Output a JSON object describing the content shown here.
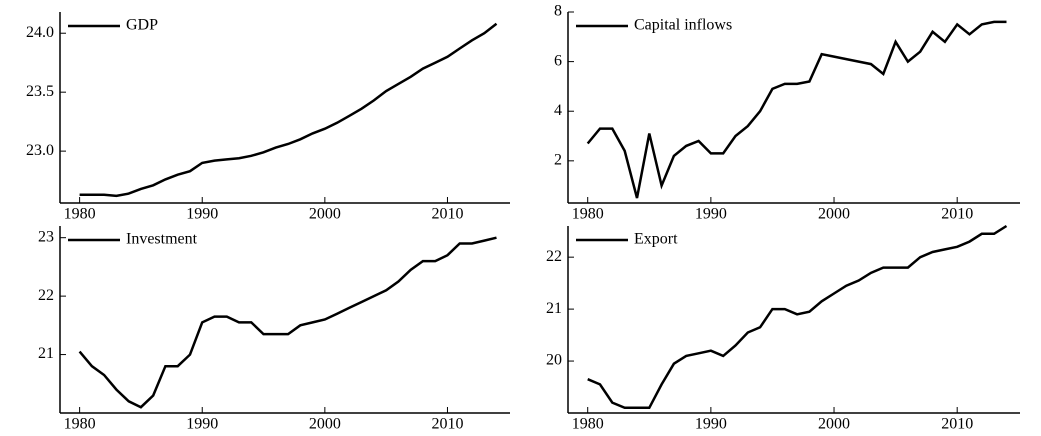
{
  "chart_data": [
    {
      "type": "line",
      "x": [
        1980,
        1981,
        1982,
        1983,
        1984,
        1985,
        1986,
        1987,
        1988,
        1989,
        1990,
        1991,
        1992,
        1993,
        1994,
        1995,
        1996,
        1997,
        1998,
        1999,
        2000,
        2001,
        2002,
        2003,
        2004,
        2005,
        2006,
        2007,
        2008,
        2009,
        2010,
        2011,
        2012,
        2013,
        2014
      ],
      "series": [
        {
          "name": "GDP",
          "color": "#000000",
          "values": [
            22.63,
            22.63,
            22.63,
            22.62,
            22.64,
            22.68,
            22.71,
            22.76,
            22.8,
            22.83,
            22.9,
            22.92,
            22.93,
            22.94,
            22.96,
            22.99,
            23.03,
            23.06,
            23.1,
            23.15,
            23.19,
            23.24,
            23.3,
            23.36,
            23.43,
            23.51,
            23.57,
            23.63,
            23.7,
            23.75,
            23.8,
            23.87,
            23.94,
            24.0,
            24.08
          ]
        }
      ],
      "xlim": [
        1978.4,
        2015.1
      ],
      "xticks": [
        1980,
        1990,
        2000,
        2010
      ],
      "ylim": [
        22.56,
        24.18
      ],
      "yticks": [
        {
          "value": 23.0,
          "label": "23.0"
        },
        {
          "value": 23.5,
          "label": "23.5"
        },
        {
          "value": 24.0,
          "label": "24.0"
        }
      ],
      "legend": "top-left"
    },
    {
      "type": "line",
      "x": [
        1980,
        1981,
        1982,
        1983,
        1984,
        1985,
        1986,
        1987,
        1988,
        1989,
        1990,
        1991,
        1992,
        1993,
        1994,
        1995,
        1996,
        1997,
        1998,
        1999,
        2000,
        2001,
        2002,
        2003,
        2004,
        2005,
        2006,
        2007,
        2008,
        2009,
        2010,
        2011,
        2012,
        2013,
        2014
      ],
      "series": [
        {
          "name": "Capital inflows",
          "color": "#000000",
          "values": [
            2.7,
            3.3,
            3.3,
            2.4,
            0.5,
            3.1,
            1.0,
            2.2,
            2.6,
            2.8,
            2.3,
            2.3,
            3.0,
            3.4,
            4.0,
            4.9,
            5.1,
            5.1,
            5.2,
            6.3,
            6.2,
            6.1,
            6.0,
            5.9,
            5.5,
            6.8,
            6.0,
            6.4,
            7.2,
            6.8,
            7.5,
            7.1,
            7.5,
            7.6,
            7.6
          ]
        }
      ],
      "xlim": [
        1978.4,
        2015.1
      ],
      "xticks": [
        1980,
        1990,
        2000,
        2010
      ],
      "ylim": [
        0.3,
        8.0
      ],
      "yticks": [
        2,
        4,
        6,
        8
      ],
      "legend": "top-left"
    },
    {
      "type": "line",
      "x": [
        1980,
        1981,
        1982,
        1983,
        1984,
        1985,
        1986,
        1987,
        1988,
        1989,
        1990,
        1991,
        1992,
        1993,
        1994,
        1995,
        1996,
        1997,
        1998,
        1999,
        2000,
        2001,
        2002,
        2003,
        2004,
        2005,
        2006,
        2007,
        2008,
        2009,
        2010,
        2011,
        2012,
        2013,
        2014
      ],
      "series": [
        {
          "name": "Investment",
          "color": "#000000",
          "values": [
            21.05,
            20.8,
            20.65,
            20.4,
            20.2,
            20.1,
            20.3,
            20.8,
            20.8,
            21.0,
            21.55,
            21.65,
            21.65,
            21.55,
            21.55,
            21.35,
            21.35,
            21.35,
            21.5,
            21.55,
            21.6,
            21.7,
            21.8,
            21.9,
            22.0,
            22.1,
            22.25,
            22.45,
            22.6,
            22.6,
            22.7,
            22.9,
            22.9,
            22.95,
            23.0
          ]
        }
      ],
      "xlim": [
        1978.4,
        2015.1
      ],
      "xticks": [
        1980,
        1990,
        2000,
        2010
      ],
      "ylim": [
        20.0,
        23.2
      ],
      "yticks": [
        21,
        22,
        23
      ],
      "legend": "top-left"
    },
    {
      "type": "line",
      "x": [
        1980,
        1981,
        1982,
        1983,
        1984,
        1985,
        1986,
        1987,
        1988,
        1989,
        1990,
        1991,
        1992,
        1993,
        1994,
        1995,
        1996,
        1997,
        1998,
        1999,
        2000,
        2001,
        2002,
        2003,
        2004,
        2005,
        2006,
        2007,
        2008,
        2009,
        2010,
        2011,
        2012,
        2013,
        2014
      ],
      "series": [
        {
          "name": "Export",
          "color": "#000000",
          "values": [
            19.65,
            19.55,
            19.2,
            19.1,
            19.1,
            19.1,
            19.55,
            19.95,
            20.1,
            20.15,
            20.2,
            20.1,
            20.3,
            20.55,
            20.65,
            21.0,
            21.0,
            20.9,
            20.95,
            21.15,
            21.3,
            21.45,
            21.55,
            21.7,
            21.8,
            21.8,
            21.8,
            22.0,
            22.1,
            22.15,
            22.2,
            22.3,
            22.45,
            22.45,
            22.6
          ]
        }
      ],
      "xlim": [
        1978.4,
        2015.1
      ],
      "xticks": [
        1980,
        1990,
        2000,
        2010
      ],
      "ylim": [
        19.0,
        22.6
      ],
      "yticks": [
        20,
        21,
        22
      ],
      "legend": "top-left"
    }
  ]
}
